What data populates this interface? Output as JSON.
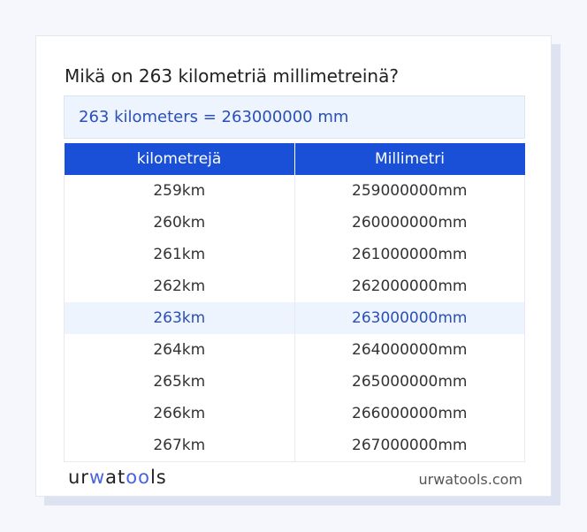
{
  "title": "Mikä on 263 kilometriä millimetreinä?",
  "result": "263 kilometers = 263000000 mm",
  "table": {
    "headers": [
      "kilometrejä",
      "Millimetri"
    ],
    "rows": [
      [
        "259km",
        "259000000mm"
      ],
      [
        "260km",
        "260000000mm"
      ],
      [
        "261km",
        "261000000mm"
      ],
      [
        "262km",
        "262000000mm"
      ],
      [
        "263km",
        "263000000mm"
      ],
      [
        "264km",
        "264000000mm"
      ],
      [
        "265km",
        "265000000mm"
      ],
      [
        "266km",
        "266000000mm"
      ],
      [
        "267km",
        "267000000mm"
      ]
    ],
    "highlighted_row": 4
  },
  "footer": {
    "logo": "urwatools",
    "site": "urwatools.com"
  },
  "colors": {
    "accent": "#1a4fd8",
    "highlight": "#edf4fe"
  }
}
